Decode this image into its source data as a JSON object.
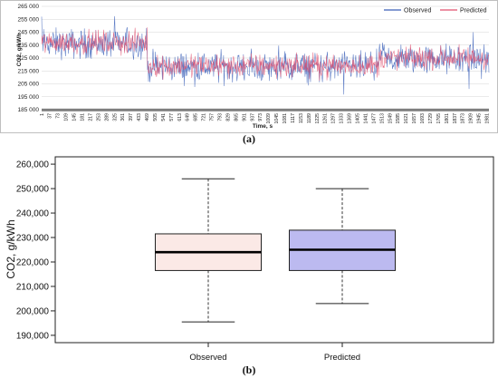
{
  "chart_data": [
    {
      "type": "line",
      "panel_label": "(a)",
      "ylabel": "CO2, g/kWh",
      "xlabel": "Time, s",
      "ylim": [
        185000,
        265000
      ],
      "y_ticks": [
        "185 000",
        "195 000",
        "205 000",
        "215 000",
        "225 000",
        "235 000",
        "245 000",
        "255 000",
        "265 000"
      ],
      "y_tick_values": [
        185000,
        195000,
        205000,
        215000,
        225000,
        235000,
        245000,
        255000,
        265000
      ],
      "x_ticks": [
        "1",
        "37",
        "73",
        "109",
        "145",
        "181",
        "217",
        "253",
        "289",
        "325",
        "361",
        "397",
        "433",
        "469",
        "505",
        "541",
        "577",
        "613",
        "649",
        "685",
        "721",
        "757",
        "793",
        "829",
        "865",
        "901",
        "937",
        "973",
        "1009",
        "1045",
        "1081",
        "1117",
        "1153",
        "1189",
        "1225",
        "1261",
        "1297",
        "1333",
        "1369",
        "1405",
        "1441",
        "1477",
        "1513",
        "1549",
        "1585",
        "1621",
        "1657",
        "1693",
        "1729",
        "1765",
        "1801",
        "1837",
        "1873",
        "1909",
        "1945",
        "1981"
      ],
      "x_range": [
        1,
        1990
      ],
      "grid": "horizontal",
      "legend_position": "top-right",
      "segments_approx_mean": [
        {
          "from": 1,
          "to": 470,
          "observed_mean": 236000,
          "predicted_mean": 237000
        },
        {
          "from": 470,
          "to": 1500,
          "observed_mean": 218000,
          "predicted_mean": 219000
        },
        {
          "from": 1500,
          "to": 1990,
          "observed_mean": 224000,
          "predicted_mean": 225000
        }
      ],
      "series": [
        {
          "name": "Observed",
          "color": "#3a5fb8"
        },
        {
          "name": "Predicted",
          "color": "#e0506e"
        }
      ]
    },
    {
      "type": "box",
      "panel_label": "(b)",
      "ylabel": "CO2, g/kWh",
      "ylim": [
        187000,
        263000
      ],
      "y_ticks": [
        "190,000",
        "200,000",
        "210,000",
        "220,000",
        "230,000",
        "240,000",
        "250,000",
        "260,000"
      ],
      "y_tick_values": [
        190000,
        200000,
        210000,
        220000,
        230000,
        240000,
        250000,
        260000
      ],
      "categories": [
        "Observed",
        "Predicted"
      ],
      "boxes": [
        {
          "name": "Observed",
          "min": 195500,
          "q1": 216500,
          "median": 224000,
          "q3": 231500,
          "max": 254000,
          "fill": "#fbe9e6"
        },
        {
          "name": "Predicted",
          "min": 203000,
          "q1": 216500,
          "median": 225000,
          "q3": 233000,
          "max": 250000,
          "fill": "#bcbaf0"
        }
      ]
    }
  ]
}
